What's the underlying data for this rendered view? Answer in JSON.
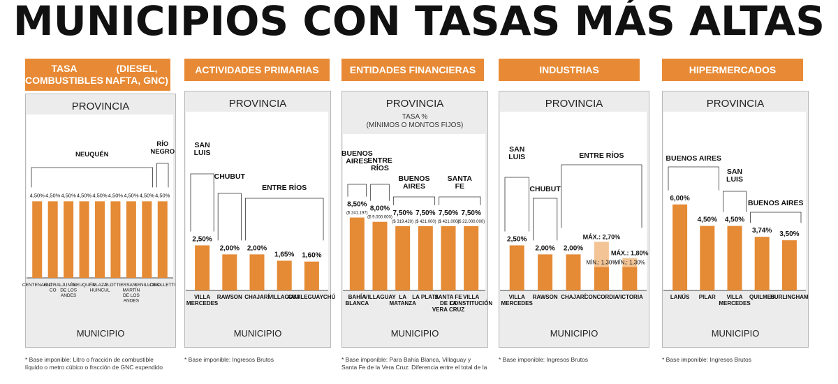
{
  "title": "MUNICIPIOS CON TASAS MÁS ALTAS",
  "colors": {
    "bar": "#e58a35",
    "bar_light": "#f3c596",
    "header": "#e88a35"
  },
  "chart_data": [
    {
      "type": "bar",
      "title": "TASA COMBUSTIBLES (DIESEL, NAFTA, GNC)",
      "header_lines": [
        "TASA COMBUSTIBLES",
        "(DIESEL, NAFTA, GNC)"
      ],
      "xlabel": "MUNICIPIO",
      "group_label": "PROVINCIA",
      "subtitle": "",
      "ylim": [
        0,
        5.5
      ],
      "unit": "%",
      "categories": [
        "CENTENARIO",
        "CUTRAL CO",
        "JUNÍN DE LOS ANDES",
        "NEUQUÉN",
        "PLAZA HUINCUL",
        "PLOTTIER",
        "SAN MARTÍN DE LOS ANDES",
        "SENILLOSA",
        "CIPOLLETTI"
      ],
      "values": [
        4.5,
        4.5,
        4.5,
        4.5,
        4.5,
        4.5,
        4.5,
        4.5,
        4.5
      ],
      "labels": [
        "4,50%",
        "4,50%",
        "4,50%",
        "4,50%",
        "4,50%",
        "4,50%",
        "4,50%",
        "4,50%",
        "4,50%"
      ],
      "provinces": [
        {
          "name": "NEUQUÉN",
          "from": 0,
          "to": 7
        },
        {
          "name": "RÍO NEGRO",
          "from": 8,
          "to": 8
        }
      ],
      "footnote": [
        "Base imponible: Litro o fracción de combustible",
        "líquido o metro cúbico o fracción de GNC expendido"
      ]
    },
    {
      "type": "bar",
      "title": "ACTIVIDADES PRIMARIAS",
      "header_lines": [
        "ACTIVIDADES PRIMARIAS"
      ],
      "xlabel": "MUNICIPIO",
      "group_label": "PROVINCIA",
      "subtitle": "",
      "ylim": [
        0,
        5.5
      ],
      "unit": "%",
      "categories": [
        "VILLA MERCEDES",
        "RAWSON",
        "CHAJARÍ",
        "VILLAGUAY",
        "GUALEGUAYCHÚ"
      ],
      "values": [
        2.5,
        2.0,
        2.0,
        1.65,
        1.6
      ],
      "labels": [
        "2,50%",
        "2,00%",
        "2,00%",
        "1,65%",
        "1,60%"
      ],
      "provinces": [
        {
          "name": "SAN LUIS",
          "from": 0,
          "to": 0
        },
        {
          "name": "CHUBUT",
          "from": 1,
          "to": 1
        },
        {
          "name": "ENTRE RÍOS",
          "from": 2,
          "to": 4
        }
      ],
      "footnote": [
        "Base imponible: Ingresos Brutos"
      ]
    },
    {
      "type": "bar",
      "title": "ENTIDADES FINANCIERAS",
      "header_lines": [
        "ENTIDADES FINANCIERAS"
      ],
      "xlabel": "MUNICIPIO",
      "group_label": "PROVINCIA",
      "subtitle": "TASA % (MÍNIMOS O MONTOS FIJOS)",
      "subtitle_lines": [
        "TASA %",
        "(MÍNIMOS O MONTOS FIJOS)"
      ],
      "ylim": [
        0,
        14
      ],
      "unit": "%",
      "categories": [
        "BAHÍA BLANCA",
        "VILLAGUAY",
        "LA MATANZA",
        "LA PLATA",
        "SANTA FE DE LA VERA CRUZ",
        "VILLA CONSTITUCIÓN"
      ],
      "values": [
        8.5,
        8.0,
        7.5,
        7.5,
        7.5,
        7.5
      ],
      "labels": [
        "8,50%",
        "8,00%",
        "7,50%",
        "7,50%",
        "7,50%",
        "7,50%"
      ],
      "amounts": [
        "($ 241.197)",
        "($ 9.000.000)",
        "($ 319.420)",
        "($ 421.000)",
        "($ 421.000)",
        "($ 22.000.000)"
      ],
      "provinces": [
        {
          "name": "BUENOS AIRES",
          "from": 0,
          "to": 0
        },
        {
          "name": "ENTRE RÍOS",
          "from": 1,
          "to": 1
        },
        {
          "name": "BUENOS AIRES",
          "from": 2,
          "to": 3
        },
        {
          "name": "SANTA FE",
          "from": 4,
          "to": 5
        }
      ],
      "footnote": [
        "Base imponible: Para Bahía Blanca, Villaguay y",
        "Santa Fe de la Vera Cruz: Diferencia entre el total de la"
      ]
    },
    {
      "type": "bar",
      "title": "INDUSTRIAS",
      "header_lines": [
        "INDUSTRIAS"
      ],
      "xlabel": "MUNICIPIO",
      "group_label": "PROVINCIA",
      "subtitle": "",
      "ylim": [
        0,
        5.5
      ],
      "unit": "%",
      "categories": [
        "VILLA MERCEDES",
        "RAWSON",
        "CHAJARÍ",
        "CONCORDIA",
        "VICTORIA"
      ],
      "values": [
        2.5,
        2.0,
        2.0,
        1.3,
        1.3
      ],
      "max_values": [
        null,
        null,
        null,
        2.7,
        1.8
      ],
      "labels": [
        "2,50%",
        "2,00%",
        "2,00%",
        "MÍN.: 1,30%",
        "MÍN.: 1,30%"
      ],
      "max_labels": [
        "",
        "",
        "",
        "MÁX.: 2,70%",
        "MÁX.: 1,80%"
      ],
      "provinces": [
        {
          "name": "SAN LUIS",
          "from": 0,
          "to": 0
        },
        {
          "name": "CHUBUT",
          "from": 1,
          "to": 1
        },
        {
          "name": "ENTRE RÍOS",
          "from": 2,
          "to": 4
        }
      ],
      "footnote": [
        "Base imponible: Ingresos Brutos"
      ]
    },
    {
      "type": "bar",
      "title": "HIPERMERCADOS",
      "header_lines": [
        "HIPERMERCADOS"
      ],
      "xlabel": "MUNICIPIO",
      "group_label": "PROVINCIA",
      "subtitle": "",
      "ylim": [
        0,
        7.5
      ],
      "unit": "%",
      "categories": [
        "LANÚS",
        "PILAR",
        "VILLA MERCEDES",
        "QUILMES",
        "HURLINGHAM"
      ],
      "values": [
        6.0,
        4.5,
        4.5,
        3.74,
        3.5
      ],
      "labels": [
        "6,00%",
        "4,50%",
        "4,50%",
        "3,74%",
        "3,50%"
      ],
      "provinces": [
        {
          "name": "BUENOS AIRES",
          "from": 0,
          "to": 1
        },
        {
          "name": "SAN LUIS",
          "from": 2,
          "to": 2
        },
        {
          "name": "BUENOS AIRES",
          "from": 3,
          "to": 4
        }
      ],
      "footnote": [
        "Base imponible: Ingresos Brutos"
      ]
    }
  ]
}
